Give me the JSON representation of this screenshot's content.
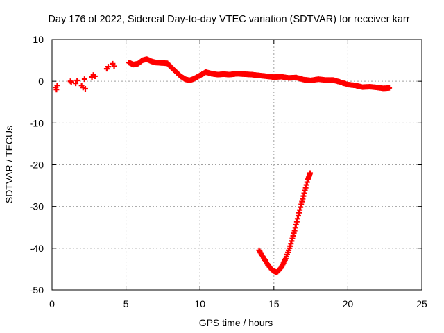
{
  "chart_data": {
    "type": "scatter",
    "title": "Day 176 of 2022, Sidereal Day-to-day VTEC variation (SDTVAR) for receiver karr",
    "xlabel": "GPS time / hours",
    "ylabel": "SDTVAR / TECUs",
    "xlim": [
      0,
      25
    ],
    "ylim": [
      -50,
      10
    ],
    "xticks": [
      "0",
      "5",
      "10",
      "15",
      "20",
      "25"
    ],
    "yticks": [
      "10",
      "0",
      "-10",
      "-20",
      "-30",
      "-40",
      "-50"
    ],
    "grid": true,
    "marker": "+",
    "series": [
      {
        "name": "SDTVAR",
        "color": "#ff0000",
        "segments": [
          {
            "name": "early-sparse",
            "x": [
              0.25,
              0.3,
              0.35,
              1.25,
              1.3,
              1.6,
              1.7,
              2.0,
              2.1,
              2.2,
              2.25,
              2.7,
              2.8,
              2.9,
              3.7,
              3.8,
              4.1,
              4.2
            ],
            "y": [
              -1.5,
              -2.0,
              -1.0,
              0.0,
              -0.3,
              -0.5,
              0.2,
              -1.0,
              -1.5,
              0.5,
              -1.8,
              1.0,
              1.5,
              1.2,
              3.0,
              3.5,
              4.2,
              3.6
            ]
          },
          {
            "name": "main-trend",
            "x": [
              5.2,
              5.5,
              5.8,
              6.1,
              6.4,
              6.7,
              7.0,
              7.4,
              7.8,
              8.1,
              8.4,
              8.7,
              9.0,
              9.3,
              9.6,
              10.0,
              10.4,
              10.8,
              11.2,
              11.6,
              12.0,
              12.5,
              13.0,
              13.5,
              14.0,
              14.5,
              15.0,
              15.5,
              16.0,
              16.5,
              17.0,
              17.5,
              18.0,
              18.5,
              19.0,
              19.5,
              20.0,
              20.5,
              21.0,
              21.5,
              22.0,
              22.4,
              22.8
            ],
            "y": [
              4.5,
              4.0,
              4.2,
              5.0,
              5.3,
              4.8,
              4.5,
              4.4,
              4.3,
              3.2,
              2.2,
              1.2,
              0.5,
              0.2,
              0.6,
              1.4,
              2.2,
              1.8,
              1.6,
              1.7,
              1.6,
              1.8,
              1.7,
              1.6,
              1.4,
              1.2,
              1.0,
              1.1,
              0.8,
              0.9,
              0.4,
              0.2,
              0.5,
              0.3,
              0.3,
              -0.2,
              -0.8,
              -1.0,
              -1.4,
              -1.3,
              -1.5,
              -1.7,
              -1.6
            ]
          },
          {
            "name": "v-dip",
            "x": [
              14.0,
              14.3,
              14.6,
              14.9,
              15.2,
              15.5,
              15.8,
              16.1,
              16.4,
              16.7,
              17.0,
              17.3,
              17.45
            ],
            "y": [
              -40.5,
              -42.3,
              -44.0,
              -45.3,
              -45.8,
              -44.6,
              -42.5,
              -39.5,
              -35.8,
              -31.5,
              -27.5,
              -23.5,
              -22.0
            ]
          }
        ]
      }
    ]
  }
}
